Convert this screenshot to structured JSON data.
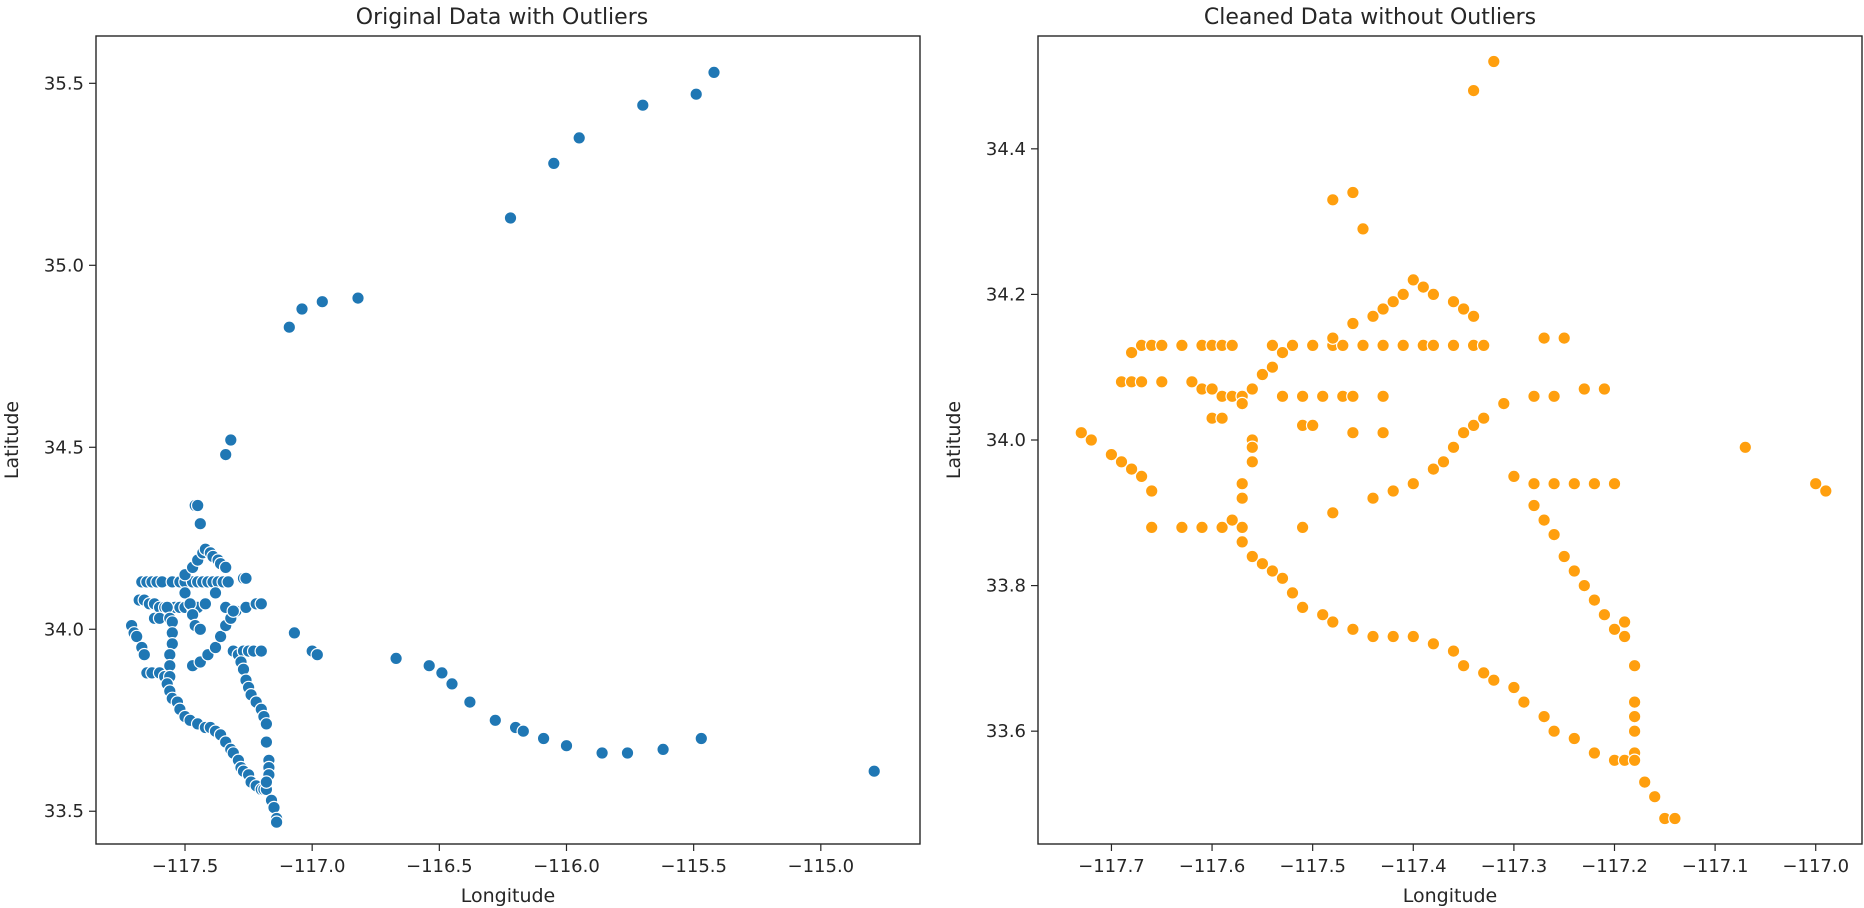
{
  "chart_data": [
    {
      "type": "scatter",
      "title": "Original Data with Outliers",
      "xlabel": "Longitude",
      "ylabel": "Latitude",
      "xlim": [
        -117.85,
        -114.61
      ],
      "ylim": [
        33.41,
        35.63
      ],
      "xticks": [
        -117.5,
        -117.0,
        -116.5,
        -116.0,
        -115.5,
        -115.0
      ],
      "xtick_labels": [
        "−117.5",
        "−117.0",
        "−116.5",
        "−116.0",
        "−115.5",
        "−115.0"
      ],
      "yticks": [
        33.5,
        34.0,
        34.5,
        35.0,
        35.5
      ],
      "ytick_labels": [
        "33.5",
        "34.0",
        "34.5",
        "35.0",
        "35.5"
      ],
      "grid": false,
      "color": "#1f77b4",
      "points": [
        [
          -117.71,
          34.01
        ],
        [
          -117.7,
          33.99
        ],
        [
          -117.69,
          33.98
        ],
        [
          -117.67,
          33.95
        ],
        [
          -117.66,
          33.93
        ],
        [
          -117.65,
          33.88
        ],
        [
          -117.63,
          33.88
        ],
        [
          -117.6,
          33.88
        ],
        [
          -117.58,
          33.87
        ],
        [
          -117.67,
          34.13
        ],
        [
          -117.65,
          34.13
        ],
        [
          -117.63,
          34.13
        ],
        [
          -117.61,
          34.13
        ],
        [
          -117.59,
          34.13
        ],
        [
          -117.55,
          34.13
        ],
        [
          -117.52,
          34.13
        ],
        [
          -117.5,
          34.13
        ],
        [
          -117.47,
          34.13
        ],
        [
          -117.45,
          34.13
        ],
        [
          -117.43,
          34.13
        ],
        [
          -117.41,
          34.13
        ],
        [
          -117.39,
          34.13
        ],
        [
          -117.37,
          34.13
        ],
        [
          -117.35,
          34.13
        ],
        [
          -117.33,
          34.13
        ],
        [
          -117.27,
          34.14
        ],
        [
          -117.26,
          34.14
        ],
        [
          -117.68,
          34.08
        ],
        [
          -117.66,
          34.08
        ],
        [
          -117.64,
          34.07
        ],
        [
          -117.62,
          34.07
        ],
        [
          -117.6,
          34.06
        ],
        [
          -117.58,
          34.06
        ],
        [
          -117.56,
          34.06
        ],
        [
          -117.54,
          34.06
        ],
        [
          -117.52,
          34.06
        ],
        [
          -117.5,
          34.06
        ],
        [
          -117.47,
          34.06
        ],
        [
          -117.45,
          34.06
        ],
        [
          -117.62,
          34.03
        ],
        [
          -117.6,
          34.03
        ],
        [
          -117.57,
          34.06
        ],
        [
          -117.56,
          34.03
        ],
        [
          -117.5,
          34.15
        ],
        [
          -117.47,
          34.17
        ],
        [
          -117.45,
          34.19
        ],
        [
          -117.43,
          34.21
        ],
        [
          -117.42,
          34.22
        ],
        [
          -117.4,
          34.21
        ],
        [
          -117.39,
          34.2
        ],
        [
          -117.37,
          34.19
        ],
        [
          -117.36,
          34.18
        ],
        [
          -117.34,
          34.17
        ],
        [
          -117.55,
          34.02
        ],
        [
          -117.55,
          33.99
        ],
        [
          -117.55,
          33.96
        ],
        [
          -117.56,
          33.93
        ],
        [
          -117.56,
          33.9
        ],
        [
          -117.56,
          33.87
        ],
        [
          -117.57,
          33.85
        ],
        [
          -117.56,
          33.83
        ],
        [
          -117.55,
          33.81
        ],
        [
          -117.53,
          33.8
        ],
        [
          -117.52,
          33.78
        ],
        [
          -117.5,
          33.76
        ],
        [
          -117.48,
          33.75
        ],
        [
          -117.45,
          33.74
        ],
        [
          -117.42,
          33.73
        ],
        [
          -117.4,
          33.73
        ],
        [
          -117.38,
          33.72
        ],
        [
          -117.36,
          33.71
        ],
        [
          -117.34,
          33.69
        ],
        [
          -117.32,
          33.67
        ],
        [
          -117.31,
          33.66
        ],
        [
          -117.29,
          33.64
        ],
        [
          -117.28,
          33.62
        ],
        [
          -117.27,
          33.61
        ],
        [
          -117.25,
          33.6
        ],
        [
          -117.24,
          33.58
        ],
        [
          -117.22,
          33.57
        ],
        [
          -117.2,
          33.56
        ],
        [
          -117.19,
          33.56
        ],
        [
          -117.18,
          33.56
        ],
        [
          -117.5,
          34.1
        ],
        [
          -117.48,
          34.07
        ],
        [
          -117.47,
          34.04
        ],
        [
          -117.46,
          34.01
        ],
        [
          -117.44,
          34.0
        ],
        [
          -117.42,
          34.07
        ],
        [
          -117.38,
          34.1
        ],
        [
          -117.34,
          34.06
        ],
        [
          -117.3,
          34.05
        ],
        [
          -117.26,
          34.06
        ],
        [
          -117.22,
          34.07
        ],
        [
          -117.2,
          34.07
        ],
        [
          -117.47,
          33.9
        ],
        [
          -117.44,
          33.91
        ],
        [
          -117.41,
          33.93
        ],
        [
          -117.38,
          33.95
        ],
        [
          -117.36,
          33.98
        ],
        [
          -117.34,
          34.01
        ],
        [
          -117.32,
          34.03
        ],
        [
          -117.31,
          34.05
        ],
        [
          -117.31,
          33.94
        ],
        [
          -117.29,
          33.93
        ],
        [
          -117.27,
          33.94
        ],
        [
          -117.25,
          33.94
        ],
        [
          -117.23,
          33.94
        ],
        [
          -117.2,
          33.94
        ],
        [
          -117.28,
          33.91
        ],
        [
          -117.27,
          33.89
        ],
        [
          -117.26,
          33.86
        ],
        [
          -117.25,
          33.84
        ],
        [
          -117.24,
          33.82
        ],
        [
          -117.22,
          33.8
        ],
        [
          -117.2,
          33.78
        ],
        [
          -117.19,
          33.76
        ],
        [
          -117.18,
          33.74
        ],
        [
          -117.18,
          33.69
        ],
        [
          -117.17,
          33.64
        ],
        [
          -117.17,
          33.62
        ],
        [
          -117.17,
          33.6
        ],
        [
          -117.18,
          33.58
        ],
        [
          -117.16,
          33.53
        ],
        [
          -117.15,
          33.51
        ],
        [
          -117.14,
          33.48
        ],
        [
          -117.14,
          33.47
        ],
        [
          -117.46,
          34.34
        ],
        [
          -117.45,
          34.34
        ],
        [
          -117.44,
          34.29
        ],
        [
          -117.34,
          34.48
        ],
        [
          -117.32,
          34.52
        ],
        [
          -117.07,
          33.99
        ],
        [
          -117.0,
          33.94
        ],
        [
          -116.98,
          33.93
        ],
        [
          -117.09,
          34.83
        ],
        [
          -117.04,
          34.88
        ],
        [
          -116.96,
          34.9
        ],
        [
          -116.82,
          34.91
        ],
        [
          -116.22,
          35.13
        ],
        [
          -116.05,
          35.28
        ],
        [
          -115.95,
          35.35
        ],
        [
          -115.7,
          35.44
        ],
        [
          -115.49,
          35.47
        ],
        [
          -115.42,
          35.53
        ],
        [
          -116.67,
          33.92
        ],
        [
          -116.54,
          33.9
        ],
        [
          -116.49,
          33.88
        ],
        [
          -116.45,
          33.85
        ],
        [
          -116.38,
          33.8
        ],
        [
          -116.28,
          33.75
        ],
        [
          -116.2,
          33.73
        ],
        [
          -116.17,
          33.72
        ],
        [
          -116.09,
          33.7
        ],
        [
          -116.0,
          33.68
        ],
        [
          -115.86,
          33.66
        ],
        [
          -115.76,
          33.66
        ],
        [
          -115.62,
          33.67
        ],
        [
          -115.47,
          33.7
        ],
        [
          -114.79,
          33.61
        ]
      ]
    },
    {
      "type": "scatter",
      "title": "Cleaned Data without Outliers",
      "xlabel": "Longitude",
      "ylabel": "Latitude",
      "xlim": [
        -117.773,
        -116.954
      ],
      "ylim": [
        33.445,
        34.555
      ],
      "xticks": [
        -117.7,
        -117.6,
        -117.5,
        -117.4,
        -117.3,
        -117.2,
        -117.1,
        -117.0
      ],
      "xtick_labels": [
        "−117.7",
        "−117.6",
        "−117.5",
        "−117.4",
        "−117.3",
        "−117.2",
        "−117.1",
        "−117.0"
      ],
      "yticks": [
        33.6,
        33.8,
        34.0,
        34.2,
        34.4
      ],
      "ytick_labels": [
        "33.6",
        "33.8",
        "34.0",
        "34.2",
        "34.4"
      ],
      "grid": false,
      "color": "#ff9f0e",
      "points": [
        [
          -117.73,
          34.01
        ],
        [
          -117.72,
          34.0
        ],
        [
          -117.7,
          33.98
        ],
        [
          -117.69,
          33.97
        ],
        [
          -117.68,
          33.96
        ],
        [
          -117.67,
          33.95
        ],
        [
          -117.66,
          33.93
        ],
        [
          -117.66,
          33.88
        ],
        [
          -117.68,
          34.12
        ],
        [
          -117.67,
          34.13
        ],
        [
          -117.66,
          34.13
        ],
        [
          -117.65,
          34.13
        ],
        [
          -117.63,
          34.13
        ],
        [
          -117.61,
          34.13
        ],
        [
          -117.6,
          34.13
        ],
        [
          -117.59,
          34.13
        ],
        [
          -117.58,
          34.13
        ],
        [
          -117.54,
          34.13
        ],
        [
          -117.52,
          34.13
        ],
        [
          -117.5,
          34.13
        ],
        [
          -117.48,
          34.13
        ],
        [
          -117.47,
          34.13
        ],
        [
          -117.45,
          34.13
        ],
        [
          -117.43,
          34.13
        ],
        [
          -117.41,
          34.13
        ],
        [
          -117.39,
          34.13
        ],
        [
          -117.38,
          34.13
        ],
        [
          -117.36,
          34.13
        ],
        [
          -117.34,
          34.13
        ],
        [
          -117.33,
          34.13
        ],
        [
          -117.27,
          34.14
        ],
        [
          -117.25,
          34.14
        ],
        [
          -117.69,
          34.08
        ],
        [
          -117.68,
          34.08
        ],
        [
          -117.67,
          34.08
        ],
        [
          -117.65,
          34.08
        ],
        [
          -117.62,
          34.08
        ],
        [
          -117.61,
          34.07
        ],
        [
          -117.6,
          34.07
        ],
        [
          -117.59,
          34.06
        ],
        [
          -117.58,
          34.06
        ],
        [
          -117.57,
          34.06
        ],
        [
          -117.53,
          34.06
        ],
        [
          -117.51,
          34.06
        ],
        [
          -117.49,
          34.06
        ],
        [
          -117.47,
          34.06
        ],
        [
          -117.46,
          34.06
        ],
        [
          -117.43,
          34.06
        ],
        [
          -117.6,
          34.03
        ],
        [
          -117.59,
          34.03
        ],
        [
          -117.51,
          34.02
        ],
        [
          -117.5,
          34.02
        ],
        [
          -117.46,
          34.01
        ],
        [
          -117.43,
          34.01
        ],
        [
          -117.57,
          34.05
        ],
        [
          -117.56,
          34.07
        ],
        [
          -117.55,
          34.09
        ],
        [
          -117.54,
          34.1
        ],
        [
          -117.53,
          34.12
        ],
        [
          -117.5,
          34.13
        ],
        [
          -117.48,
          34.14
        ],
        [
          -117.46,
          34.16
        ],
        [
          -117.44,
          34.17
        ],
        [
          -117.43,
          34.18
        ],
        [
          -117.42,
          34.19
        ],
        [
          -117.41,
          34.2
        ],
        [
          -117.4,
          34.22
        ],
        [
          -117.39,
          34.21
        ],
        [
          -117.38,
          34.2
        ],
        [
          -117.36,
          34.19
        ],
        [
          -117.35,
          34.18
        ],
        [
          -117.34,
          34.17
        ],
        [
          -117.56,
          34.0
        ],
        [
          -117.56,
          33.99
        ],
        [
          -117.56,
          33.97
        ],
        [
          -117.57,
          33.94
        ],
        [
          -117.57,
          33.92
        ],
        [
          -117.58,
          33.89
        ],
        [
          -117.57,
          33.88
        ],
        [
          -117.57,
          33.86
        ],
        [
          -117.56,
          33.84
        ],
        [
          -117.55,
          33.83
        ],
        [
          -117.54,
          33.82
        ],
        [
          -117.53,
          33.81
        ],
        [
          -117.52,
          33.79
        ],
        [
          -117.51,
          33.77
        ],
        [
          -117.49,
          33.76
        ],
        [
          -117.48,
          33.75
        ],
        [
          -117.46,
          33.74
        ],
        [
          -117.44,
          33.73
        ],
        [
          -117.42,
          33.73
        ],
        [
          -117.4,
          33.73
        ],
        [
          -117.38,
          33.72
        ],
        [
          -117.36,
          33.71
        ],
        [
          -117.35,
          33.69
        ],
        [
          -117.33,
          33.68
        ],
        [
          -117.32,
          33.67
        ],
        [
          -117.3,
          33.66
        ],
        [
          -117.29,
          33.64
        ],
        [
          -117.27,
          33.62
        ],
        [
          -117.26,
          33.6
        ],
        [
          -117.24,
          33.59
        ],
        [
          -117.22,
          33.57
        ],
        [
          -117.2,
          33.56
        ],
        [
          -117.19,
          33.56
        ],
        [
          -117.18,
          33.57
        ],
        [
          -117.63,
          33.88
        ],
        [
          -117.61,
          33.88
        ],
        [
          -117.59,
          33.88
        ],
        [
          -117.51,
          33.88
        ],
        [
          -117.48,
          33.9
        ],
        [
          -117.44,
          33.92
        ],
        [
          -117.42,
          33.93
        ],
        [
          -117.4,
          33.94
        ],
        [
          -117.38,
          33.96
        ],
        [
          -117.37,
          33.97
        ],
        [
          -117.36,
          33.99
        ],
        [
          -117.35,
          34.01
        ],
        [
          -117.34,
          34.02
        ],
        [
          -117.33,
          34.03
        ],
        [
          -117.31,
          34.05
        ],
        [
          -117.28,
          34.06
        ],
        [
          -117.26,
          34.06
        ],
        [
          -117.23,
          34.07
        ],
        [
          -117.21,
          34.07
        ],
        [
          -117.3,
          33.95
        ],
        [
          -117.28,
          33.94
        ],
        [
          -117.26,
          33.94
        ],
        [
          -117.24,
          33.94
        ],
        [
          -117.22,
          33.94
        ],
        [
          -117.2,
          33.94
        ],
        [
          -117.28,
          33.91
        ],
        [
          -117.27,
          33.89
        ],
        [
          -117.26,
          33.87
        ],
        [
          -117.25,
          33.84
        ],
        [
          -117.24,
          33.82
        ],
        [
          -117.23,
          33.8
        ],
        [
          -117.22,
          33.78
        ],
        [
          -117.21,
          33.76
        ],
        [
          -117.2,
          33.74
        ],
        [
          -117.19,
          33.75
        ],
        [
          -117.19,
          33.73
        ],
        [
          -117.18,
          33.69
        ],
        [
          -117.18,
          33.64
        ],
        [
          -117.18,
          33.62
        ],
        [
          -117.18,
          33.6
        ],
        [
          -117.18,
          33.56
        ],
        [
          -117.17,
          33.53
        ],
        [
          -117.16,
          33.51
        ],
        [
          -117.15,
          33.48
        ],
        [
          -117.14,
          33.48
        ],
        [
          -117.48,
          34.33
        ],
        [
          -117.46,
          34.34
        ],
        [
          -117.45,
          34.29
        ],
        [
          -117.34,
          34.48
        ],
        [
          -117.32,
          34.52
        ],
        [
          -117.07,
          33.99
        ],
        [
          -117.0,
          33.94
        ],
        [
          -116.99,
          33.93
        ]
      ]
    }
  ]
}
